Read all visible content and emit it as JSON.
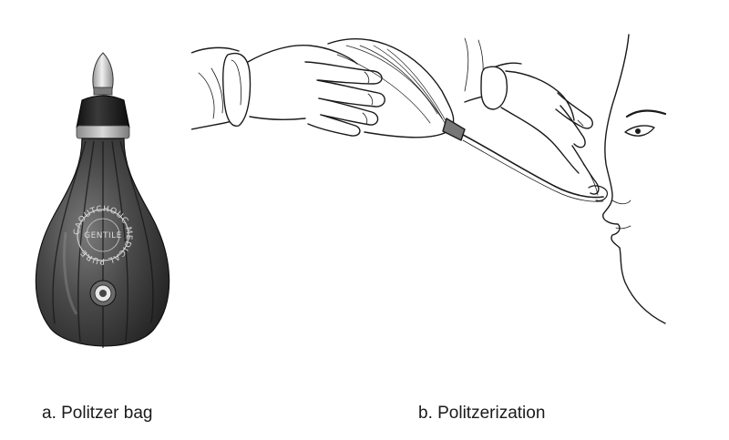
{
  "figure": {
    "panel_a": {
      "caption": "a. Politzer bag",
      "stamp_outer": "CAOUTCHOUC MEDICAL PURE",
      "stamp_inner": "GENTILE"
    },
    "panel_b": {
      "caption": "b. Politzerization"
    }
  },
  "colors": {
    "bag_dark": "#2b2b2b",
    "bag_mid": "#5a5a5a",
    "ink": "#1a1a1a",
    "background": "#ffffff"
  }
}
